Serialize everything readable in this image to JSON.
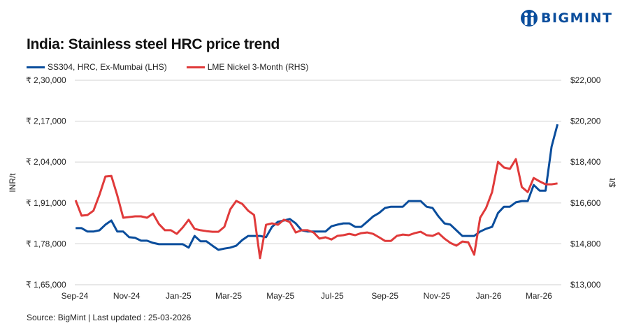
{
  "brand": {
    "name": "BIGMINT",
    "color": "#0a4d9c"
  },
  "footer": {
    "source": "Source: BigMint | Last updated : 25-03-2026"
  },
  "chart_data": {
    "type": "line",
    "title": "India: Stainless steel HRC price trend",
    "ylabel_left": "INR/t",
    "ylabel_right": "$/t",
    "legend_position": "top-left",
    "grid": true,
    "ylim_left": [
      165000,
      230000
    ],
    "ylim_right": [
      13000,
      22000
    ],
    "xlim": [
      "2024-09-01",
      "2026-03-25"
    ],
    "yticks_left": [
      "₹ 2,30,000",
      "₹ 2,17,000",
      "₹ 2,04,000",
      "₹ 1,91,000",
      "₹ 1,78,000",
      "₹ 1,65,000"
    ],
    "yticks_left_values": [
      230000,
      217000,
      204000,
      191000,
      178000,
      165000
    ],
    "yticks_right": [
      "$22,000",
      "$20,200",
      "$18,400",
      "$16,600",
      "$14,800",
      "$13,000"
    ],
    "yticks_right_values": [
      22000,
      20200,
      18400,
      16600,
      14800,
      13000
    ],
    "xticks": [
      {
        "label": "Sep-24",
        "date": "2024-09-01"
      },
      {
        "label": "Nov-24",
        "date": "2024-11-01"
      },
      {
        "label": "Jan-25",
        "date": "2025-01-01"
      },
      {
        "label": "Mar-25",
        "date": "2025-03-01"
      },
      {
        "label": "May-25",
        "date": "2025-05-01"
      },
      {
        "label": "Jul-25",
        "date": "2025-07-01"
      },
      {
        "label": "Sep-25",
        "date": "2025-09-01"
      },
      {
        "label": "Nov-25",
        "date": "2025-11-01"
      },
      {
        "label": "Jan-26",
        "date": "2026-01-01"
      },
      {
        "label": "Mar-26",
        "date": "2026-03-01"
      }
    ],
    "x": [
      "2024-09-02",
      "2024-09-09",
      "2024-09-16",
      "2024-09-23",
      "2024-09-30",
      "2024-10-07",
      "2024-10-14",
      "2024-10-21",
      "2024-10-28",
      "2024-11-04",
      "2024-11-11",
      "2024-11-18",
      "2024-11-25",
      "2024-12-02",
      "2024-12-09",
      "2024-12-16",
      "2024-12-23",
      "2024-12-30",
      "2025-01-06",
      "2025-01-13",
      "2025-01-20",
      "2025-01-27",
      "2025-02-03",
      "2025-02-10",
      "2025-02-17",
      "2025-02-24",
      "2025-03-03",
      "2025-03-10",
      "2025-03-17",
      "2025-03-24",
      "2025-03-31",
      "2025-04-07",
      "2025-04-14",
      "2025-04-21",
      "2025-04-28",
      "2025-05-05",
      "2025-05-12",
      "2025-05-19",
      "2025-05-26",
      "2025-06-02",
      "2025-06-09",
      "2025-06-16",
      "2025-06-23",
      "2025-06-30",
      "2025-07-07",
      "2025-07-14",
      "2025-07-21",
      "2025-07-28",
      "2025-08-04",
      "2025-08-11",
      "2025-08-18",
      "2025-08-25",
      "2025-09-01",
      "2025-09-08",
      "2025-09-15",
      "2025-09-22",
      "2025-09-29",
      "2025-10-06",
      "2025-10-13",
      "2025-10-20",
      "2025-10-27",
      "2025-11-03",
      "2025-11-10",
      "2025-11-17",
      "2025-11-24",
      "2025-12-01",
      "2025-12-08",
      "2025-12-15",
      "2025-12-22",
      "2025-12-29",
      "2026-01-05",
      "2026-01-12",
      "2026-01-19",
      "2026-01-26",
      "2026-02-02",
      "2026-02-09",
      "2026-02-16",
      "2026-02-23",
      "2026-03-02",
      "2026-03-09",
      "2026-03-16",
      "2026-03-23"
    ],
    "series": [
      {
        "name": "SS304, HRC, Ex-Mumbai (LHS)",
        "axis": "left",
        "color": "#0a4d9c",
        "values": [
          183000,
          183000,
          181900,
          181900,
          182300,
          184100,
          185400,
          181900,
          181900,
          180100,
          179900,
          179000,
          179000,
          178300,
          177900,
          177900,
          177900,
          177900,
          177900,
          176800,
          180500,
          178800,
          178800,
          177400,
          176100,
          176500,
          176800,
          177400,
          179200,
          180500,
          180500,
          180500,
          180100,
          183400,
          185000,
          185400,
          185900,
          184500,
          182300,
          181900,
          181900,
          181900,
          181900,
          183600,
          184100,
          184500,
          184500,
          183400,
          183400,
          185000,
          186700,
          187800,
          189400,
          189800,
          189800,
          189800,
          191600,
          191600,
          191600,
          189800,
          189400,
          186700,
          184500,
          184100,
          182300,
          180500,
          180500,
          180500,
          181900,
          182800,
          183400,
          187800,
          189800,
          189800,
          191200,
          191600,
          191600,
          196700,
          194900,
          194900,
          208900,
          216000
        ]
      },
      {
        "name": "LME Nickel 3-Month (RHS)",
        "axis": "right",
        "color": "#e03a3a",
        "values": [
          16720,
          16040,
          16070,
          16260,
          16960,
          17760,
          17790,
          16930,
          15950,
          15980,
          16010,
          16010,
          15950,
          16130,
          15670,
          15400,
          15400,
          15240,
          15520,
          15860,
          15460,
          15400,
          15360,
          15330,
          15330,
          15550,
          16320,
          16690,
          16560,
          16260,
          16070,
          14170,
          15640,
          15700,
          15640,
          15860,
          15760,
          15300,
          15400,
          15400,
          15300,
          15030,
          15090,
          14990,
          15150,
          15180,
          15240,
          15180,
          15270,
          15300,
          15240,
          15090,
          14930,
          14930,
          15150,
          15210,
          15180,
          15270,
          15330,
          15180,
          15150,
          15270,
          15030,
          14840,
          14720,
          14900,
          14870,
          14320,
          15950,
          16380,
          17080,
          18410,
          18160,
          18100,
          18530,
          17300,
          17080,
          17700,
          17550,
          17420,
          17420,
          17460
        ]
      }
    ]
  }
}
